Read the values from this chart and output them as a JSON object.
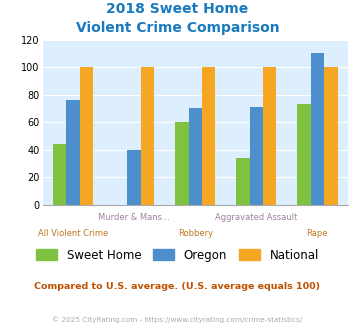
{
  "title_line1": "2018 Sweet Home",
  "title_line2": "Violent Crime Comparison",
  "categories": [
    "All Violent Crime",
    "Murder & Mans...",
    "Robbery",
    "Aggravated Assault",
    "Rape"
  ],
  "top_labels": [
    "",
    "Murder & Mans...",
    "",
    "Aggravated Assault",
    ""
  ],
  "bottom_labels": [
    "All Violent Crime",
    "",
    "Robbery",
    "",
    "Rape"
  ],
  "sweet_home": [
    44,
    0,
    60,
    34,
    73
  ],
  "oregon": [
    76,
    40,
    70,
    71,
    110
  ],
  "national": [
    100,
    100,
    100,
    100,
    100
  ],
  "color_sweet_home": "#7fc241",
  "color_oregon": "#4d8fcc",
  "color_national": "#f5a623",
  "ylim": [
    0,
    120
  ],
  "yticks": [
    0,
    20,
    40,
    60,
    80,
    100,
    120
  ],
  "background_color": "#ddeeff",
  "title_color": "#1a7abf",
  "top_label_color": "#a080a0",
  "bottom_label_color": "#c07820",
  "subtitle_text": "Compared to U.S. average. (U.S. average equals 100)",
  "subtitle_color": "#c05000",
  "footer_text": "© 2025 CityRating.com - https://www.cityrating.com/crime-statistics/",
  "footer_color": "#aaaaaa",
  "footer_link_color": "#4488cc",
  "legend_labels": [
    "Sweet Home",
    "Oregon",
    "National"
  ],
  "bar_width": 0.22
}
